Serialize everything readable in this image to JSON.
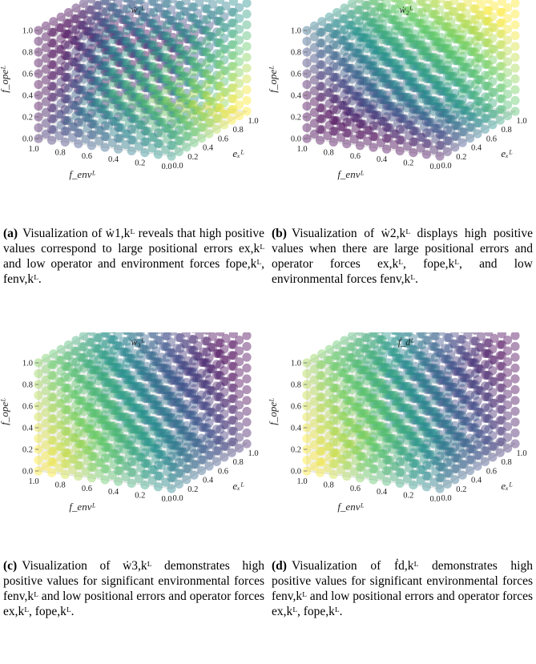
{
  "chart_data": [
    {
      "type": "scatter",
      "panel": "a",
      "title": "ẇ₁ᴸ",
      "xlabel": "eₓᴸ",
      "ylabel": "f_envᴸ",
      "zlabel": "f_opeᴸ",
      "xlim": [
        0,
        1
      ],
      "ylim": [
        0,
        1
      ],
      "zlim": [
        0,
        1
      ],
      "ticks": [
        "0.0",
        "0.2",
        "0.4",
        "0.6",
        "0.8",
        "1.0"
      ],
      "colormap": "viridis",
      "colormap_stops": [
        "#440154",
        "#3b528b",
        "#21918c",
        "#5ec962",
        "#fde725"
      ],
      "pattern": "high values for large positional errors and low operator and environment forces",
      "caption_label": "(a)",
      "caption_text": "Visualization of ẇ1,kᴸ reveals that high positive values correspond to large positional errors ex,kᴸ and low operator and environment forces fope,kᴸ, fenv,kᴸ."
    },
    {
      "type": "scatter",
      "panel": "b",
      "title": "ẇ₂ᴸ",
      "xlabel": "eₓᴸ",
      "ylabel": "f_envᴸ",
      "zlabel": "f_opeᴸ",
      "xlim": [
        0,
        1
      ],
      "ylim": [
        0,
        1
      ],
      "zlim": [
        0,
        1
      ],
      "ticks": [
        "0.0",
        "0.2",
        "0.4",
        "0.6",
        "0.8",
        "1.0"
      ],
      "colormap": "viridis",
      "colormap_stops": [
        "#440154",
        "#3b528b",
        "#21918c",
        "#5ec962",
        "#fde725"
      ],
      "pattern": "high values for large positional errors and operator forces and low environmental forces",
      "caption_label": "(b)",
      "caption_text": "Visualization of ẇ2,kᴸ displays high positive values when there are large positional errors and operator forces ex,kᴸ, fope,kᴸ, and low environmental forces fenv,kᴸ."
    },
    {
      "type": "scatter",
      "panel": "c",
      "title": "ẇ₃ᴸ",
      "xlabel": "eₓᴸ",
      "ylabel": "f_envᴸ",
      "zlabel": "f_opeᴸ",
      "xlim": [
        0,
        1
      ],
      "ylim": [
        0,
        1
      ],
      "zlim": [
        0,
        1
      ],
      "ticks": [
        "0.0",
        "0.2",
        "0.4",
        "0.6",
        "0.8",
        "1.0"
      ],
      "colormap": "viridis",
      "colormap_stops": [
        "#440154",
        "#3b528b",
        "#21918c",
        "#5ec962",
        "#fde725"
      ],
      "pattern": "high values for significant environmental forces and low positional errors and operator forces",
      "caption_label": "(c)",
      "caption_text": "Visualization of ẇ3,kᴸ demonstrates high positive values for significant environmental forces fenv,kᴸ and low positional errors and operator forces ex,kᴸ, fope,kᴸ."
    },
    {
      "type": "scatter",
      "panel": "d",
      "title": "ḟ_dᴸ",
      "xlabel": "eₓᴸ",
      "ylabel": "f_envᴸ",
      "zlabel": "f_opeᴸ",
      "xlim": [
        0,
        1
      ],
      "ylim": [
        0,
        1
      ],
      "zlim": [
        0,
        1
      ],
      "ticks": [
        "0.0",
        "0.2",
        "0.4",
        "0.6",
        "0.8",
        "1.0"
      ],
      "colormap": "viridis",
      "colormap_stops": [
        "#440154",
        "#3b528b",
        "#21918c",
        "#5ec962",
        "#fde725"
      ],
      "pattern": "high values for significant environmental forces and low positional errors and operator forces",
      "caption_label": "(d)",
      "caption_text": "Visualization of ḟd,kᴸ demonstrates high positive values for significant environmental forces fenv,kᴸ and low positional errors and operator forces ex,kᴸ, fope,kᴸ."
    }
  ]
}
